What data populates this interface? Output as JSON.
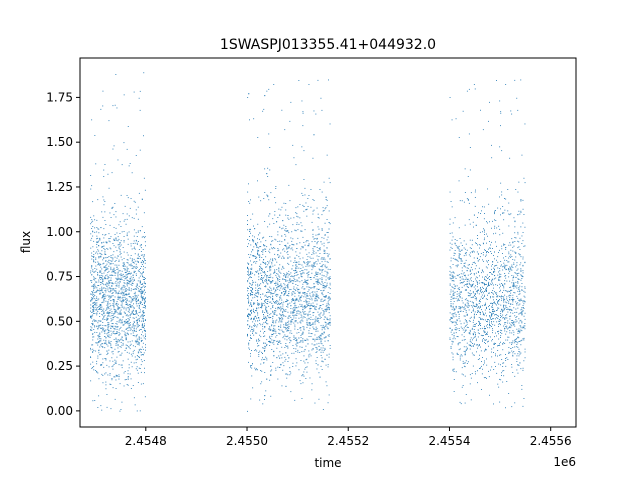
{
  "chart_data": {
    "type": "scatter",
    "title": "1SWASPJ013355.41+044932.0",
    "xlabel": "time",
    "ylabel": "flux",
    "x_offset_label": "1e6",
    "xlim": [
      2454670,
      2455650
    ],
    "ylim": [
      -0.09,
      1.97
    ],
    "x_ticks": [
      2454800,
      2455000,
      2455200,
      2455400,
      2455600
    ],
    "x_tick_labels": [
      "2.4548",
      "2.4550",
      "2.4552",
      "2.4554",
      "2.4556"
    ],
    "y_ticks": [
      0.0,
      0.25,
      0.5,
      0.75,
      1.0,
      1.25,
      1.5,
      1.75
    ],
    "y_tick_labels": [
      "0.00",
      "0.25",
      "0.50",
      "0.75",
      "1.00",
      "1.25",
      "1.50",
      "1.75"
    ],
    "grid": false,
    "marker_color": "#1f77b4",
    "series": [
      {
        "segments": [
          {
            "x_range": [
              2454690,
              2454800
            ],
            "n": 1800,
            "center": 0.62,
            "spread": 0.22
          },
          {
            "x_range": [
              2455000,
              2455165
            ],
            "n": 2300,
            "center": 0.63,
            "spread": 0.22
          },
          {
            "x_range": [
              2455400,
              2455550
            ],
            "n": 1700,
            "center": 0.61,
            "spread": 0.22
          }
        ],
        "sample_points": [
          [
            2454700,
            0.62
          ],
          [
            2454725,
            0.58
          ],
          [
            2454750,
            0.66
          ],
          [
            2454775,
            0.6
          ],
          [
            2454795,
            0.7
          ],
          [
            2455020,
            0.55
          ],
          [
            2455060,
            0.65
          ],
          [
            2455100,
            0.62
          ],
          [
            2455140,
            0.68
          ],
          [
            2455160,
            0.6
          ],
          [
            2455410,
            0.57
          ],
          [
            2455450,
            0.64
          ],
          [
            2455490,
            0.6
          ],
          [
            2455520,
            0.66
          ],
          [
            2455545,
            0.58
          ],
          [
            2454740,
            1.88
          ],
          [
            2454795,
            1.89
          ],
          [
            2455160,
            1.85
          ],
          [
            2455450,
            1.8
          ],
          [
            2455540,
            1.85
          ],
          [
            2454750,
            0.01
          ],
          [
            2455000,
            0.0
          ],
          [
            2455150,
            0.01
          ],
          [
            2455420,
            0.05
          ],
          [
            2455510,
            0.02
          ]
        ]
      }
    ]
  }
}
